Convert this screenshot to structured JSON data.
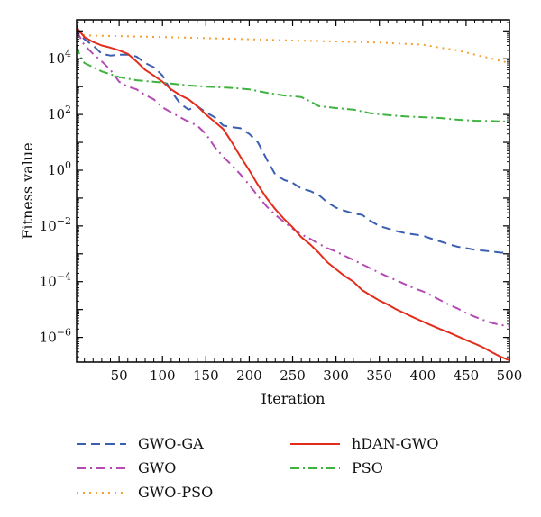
{
  "chart_data": {
    "type": "line",
    "xlabel": "Iteration",
    "ylabel": "Fitness value",
    "xlim": [
      1,
      500
    ],
    "ylim": [
      1.3e-07,
      250000.0
    ],
    "yscale": "log",
    "grid": false,
    "legend_position": "below",
    "x_ticks": [
      {
        "v": 50,
        "label": "50"
      },
      {
        "v": 100,
        "label": "100"
      },
      {
        "v": 150,
        "label": "150"
      },
      {
        "v": 200,
        "label": "200"
      },
      {
        "v": 250,
        "label": "250"
      },
      {
        "v": 300,
        "label": "300"
      },
      {
        "v": 350,
        "label": "350"
      },
      {
        "v": 400,
        "label": "400"
      },
      {
        "v": 450,
        "label": "450"
      },
      {
        "v": 500,
        "label": "500"
      }
    ],
    "y_ticks": [
      {
        "v": 1e-06,
        "base": "10",
        "exp": "−6"
      },
      {
        "v": 0.0001,
        "base": "10",
        "exp": "−4"
      },
      {
        "v": 0.01,
        "base": "10",
        "exp": "−2"
      },
      {
        "v": 1,
        "base": "10",
        "exp": "0"
      },
      {
        "v": 100,
        "base": "10",
        "exp": "2"
      },
      {
        "v": 10000,
        "base": "10",
        "exp": "4"
      }
    ],
    "series": [
      {
        "name": "GWO-GA",
        "color": "#3b5fb0",
        "dash": "10,6",
        "x": [
          1,
          5,
          10,
          20,
          30,
          40,
          50,
          60,
          70,
          80,
          90,
          100,
          110,
          120,
          130,
          140,
          150,
          160,
          170,
          180,
          190,
          200,
          210,
          220,
          230,
          240,
          250,
          260,
          270,
          280,
          290,
          300,
          310,
          320,
          330,
          340,
          350,
          360,
          370,
          380,
          390,
          400,
          410,
          420,
          430,
          440,
          450,
          460,
          470,
          480,
          490,
          500
        ],
        "y": [
          160000,
          70000,
          50000,
          30000,
          15000,
          13000,
          14000,
          14000,
          12000,
          7000,
          5000,
          2500,
          700,
          250,
          150,
          200,
          120,
          80,
          40,
          35,
          32,
          20,
          10,
          2.5,
          0.7,
          0.45,
          0.35,
          0.22,
          0.18,
          0.13,
          0.07,
          0.045,
          0.035,
          0.028,
          0.025,
          0.015,
          0.01,
          0.008,
          0.0065,
          0.0055,
          0.005,
          0.0045,
          0.0035,
          0.0028,
          0.0022,
          0.0018,
          0.0016,
          0.0014,
          0.0013,
          0.0012,
          0.0011,
          0.0011
        ]
      },
      {
        "name": "GWO",
        "color": "#b44ab4",
        "dash": "10,5,2,5",
        "x": [
          1,
          10,
          20,
          30,
          40,
          50,
          60,
          70,
          80,
          90,
          100,
          110,
          120,
          130,
          140,
          150,
          160,
          170,
          180,
          190,
          200,
          210,
          220,
          230,
          240,
          250,
          260,
          270,
          280,
          290,
          300,
          310,
          320,
          330,
          340,
          350,
          360,
          370,
          380,
          390,
          400,
          410,
          420,
          430,
          440,
          450,
          460,
          470,
          480,
          490,
          500
        ],
        "y": [
          100000,
          30000,
          15000,
          8000,
          4000,
          1500,
          1000,
          800,
          500,
          350,
          180,
          120,
          80,
          55,
          40,
          20,
          7,
          3,
          1.5,
          0.7,
          0.3,
          0.12,
          0.05,
          0.025,
          0.014,
          0.008,
          0.005,
          0.0035,
          0.0023,
          0.0016,
          0.0012,
          0.00085,
          0.0006,
          0.00042,
          0.0003,
          0.00021,
          0.00015,
          0.00011,
          8e-05,
          5.8e-05,
          4.5e-05,
          3.2e-05,
          2.2e-05,
          1.5e-05,
          1.1e-05,
          7.5e-06,
          5.5e-06,
          4.2e-06,
          3.3e-06,
          2.8e-06,
          2.5e-06
        ]
      },
      {
        "name": "GWO-PSO",
        "color": "#f5a030",
        "dash": "2,5",
        "x": [
          1,
          50,
          100,
          150,
          200,
          250,
          300,
          350,
          400,
          420,
          440,
          460,
          480,
          500
        ],
        "y": [
          70000,
          65000,
          60000,
          55000,
          50000,
          45000,
          42000,
          38000,
          32000,
          25000,
          20000,
          14000,
          10000,
          7000
        ]
      },
      {
        "name": "hDAN-GWO",
        "color": "#e32d1c",
        "dash": "",
        "x": [
          1,
          10,
          20,
          30,
          40,
          50,
          60,
          70,
          80,
          90,
          100,
          110,
          120,
          130,
          140,
          150,
          160,
          170,
          180,
          190,
          200,
          210,
          220,
          230,
          240,
          250,
          260,
          270,
          280,
          290,
          300,
          310,
          320,
          330,
          340,
          350,
          360,
          370,
          380,
          390,
          400,
          410,
          420,
          430,
          440,
          450,
          460,
          470,
          480,
          490,
          500
        ],
        "y": [
          130000,
          60000,
          40000,
          30000,
          25000,
          20000,
          15000,
          8000,
          4000,
          2500,
          1500,
          800,
          500,
          350,
          200,
          100,
          55,
          30,
          10,
          3,
          1,
          0.3,
          0.1,
          0.04,
          0.018,
          0.009,
          0.004,
          0.0022,
          0.0011,
          0.0005,
          0.00028,
          0.00016,
          0.0001,
          5e-05,
          3.2e-05,
          2.1e-05,
          1.5e-05,
          1e-05,
          7.2e-06,
          5.1e-06,
          3.7e-06,
          2.7e-06,
          2e-06,
          1.5e-06,
          1.1e-06,
          8e-07,
          6e-07,
          4.3e-07,
          2.9e-07,
          2e-07,
          1.5e-07
        ]
      },
      {
        "name": "PSO",
        "color": "#3fb23f",
        "dash": "10,4,2,4",
        "x": [
          1,
          5,
          10,
          20,
          30,
          50,
          70,
          100,
          130,
          150,
          180,
          200,
          220,
          240,
          260,
          270,
          280,
          300,
          320,
          340,
          360,
          380,
          400,
          420,
          440,
          460,
          480,
          500
        ],
        "y": [
          30000,
          12000,
          7000,
          5000,
          3500,
          2200,
          1700,
          1400,
          1100,
          1000,
          900,
          800,
          600,
          480,
          420,
          300,
          200,
          170,
          150,
          110,
          95,
          85,
          80,
          75,
          65,
          60,
          58,
          55
        ]
      }
    ]
  }
}
